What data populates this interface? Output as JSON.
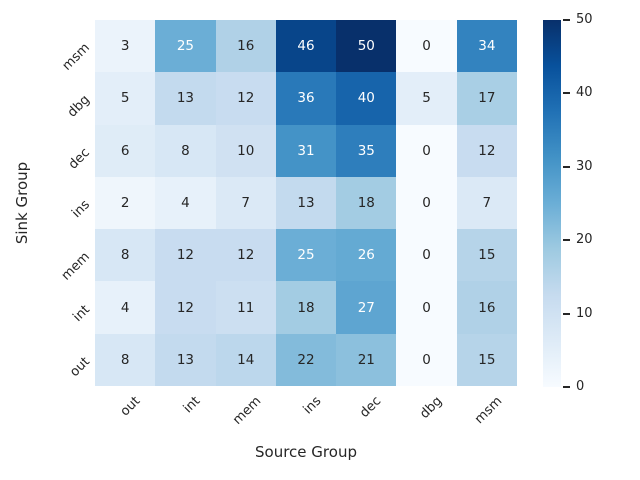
{
  "chart_data": {
    "type": "heatmap",
    "xlabel": "Source Group",
    "ylabel": "Sink Group",
    "x_categories": [
      "out",
      "int",
      "mem",
      "ins",
      "dec",
      "dbg",
      "msm"
    ],
    "y_categories": [
      "msm",
      "dbg",
      "dec",
      "ins",
      "mem",
      "int",
      "out"
    ],
    "values": [
      [
        3,
        25,
        16,
        46,
        50,
        0,
        34
      ],
      [
        5,
        13,
        12,
        36,
        40,
        5,
        17
      ],
      [
        6,
        8,
        10,
        31,
        35,
        0,
        12
      ],
      [
        2,
        4,
        7,
        13,
        18,
        0,
        7
      ],
      [
        8,
        12,
        12,
        25,
        26,
        0,
        15
      ],
      [
        4,
        12,
        11,
        18,
        27,
        0,
        16
      ],
      [
        8,
        13,
        14,
        22,
        21,
        0,
        15
      ]
    ],
    "vmin": 0,
    "vmax": 50,
    "colormap": "Blues",
    "annotated": true,
    "colorbar_ticks": [
      0,
      10,
      20,
      30,
      40,
      50
    ],
    "legend_position": "right",
    "grid": false
  },
  "colors": {
    "background": "#ffffff",
    "text": "#262626",
    "annotation_dark": "#262626",
    "annotation_light": "#ffffff",
    "blues_stops": [
      "#f7fbff",
      "#deebf7",
      "#c6dbef",
      "#9ecae1",
      "#6baed6",
      "#4292c6",
      "#2171b5",
      "#08519c",
      "#08306b"
    ]
  }
}
